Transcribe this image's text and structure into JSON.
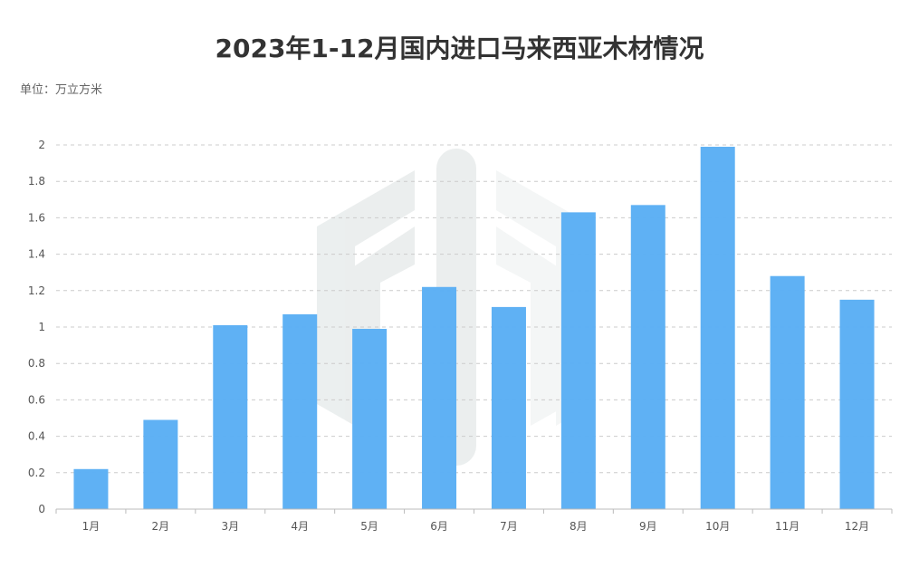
{
  "title": "2023年1-12月国内进口马来西亚木材情况",
  "unit_label": "单位：万立方米",
  "chart_data": {
    "type": "bar",
    "categories": [
      "1月",
      "2月",
      "3月",
      "4月",
      "5月",
      "6月",
      "7月",
      "8月",
      "9月",
      "10月",
      "11月",
      "12月"
    ],
    "values": [
      0.22,
      0.49,
      1.01,
      1.07,
      0.99,
      1.22,
      1.11,
      1.63,
      1.67,
      1.99,
      1.28,
      1.15
    ],
    "ylim": [
      0,
      2
    ],
    "yticks": [
      0,
      0.2,
      0.4,
      0.6,
      0.8,
      1,
      1.2,
      1.4,
      1.6,
      1.8,
      2
    ],
    "grid": true,
    "bar_color": "#5aaef4"
  }
}
